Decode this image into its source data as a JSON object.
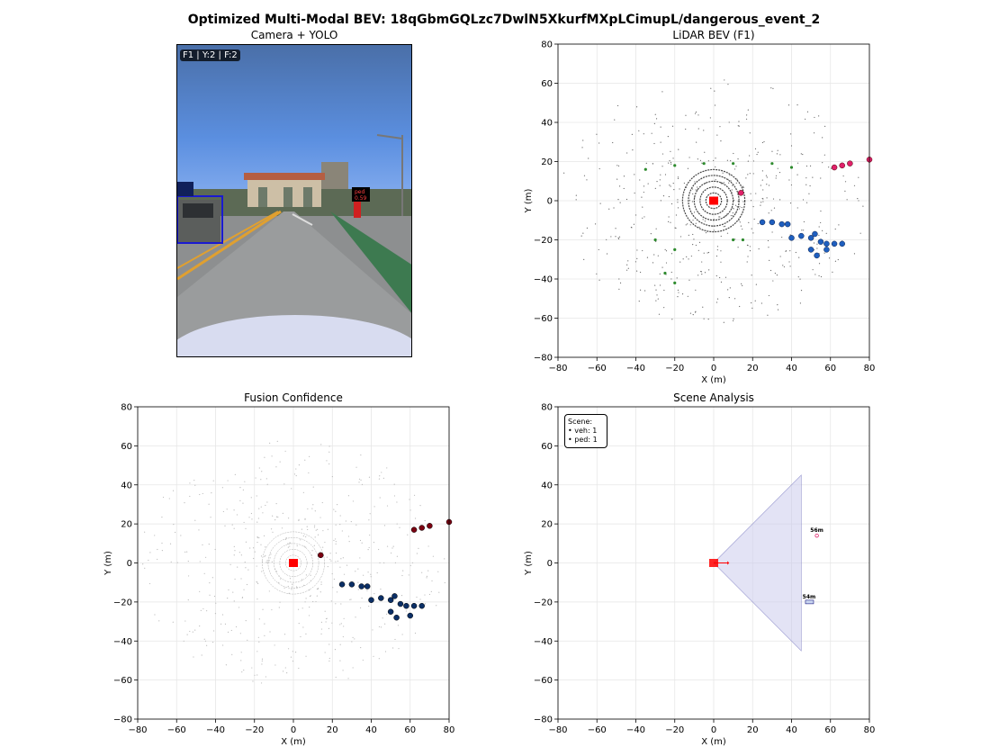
{
  "suptitle": "Optimized Multi-Modal BEV: 18qGbmGQLzc7DwlN5XkurfMXpLCimupL/dangerous_event_2",
  "panels": {
    "camera": {
      "title": "Camera + YOLO",
      "overlay": "F1 | Y:2 | F:2",
      "det_label_ped": "ped",
      "det_score_ped": "0.59"
    },
    "lidar": {
      "title": "LiDAR BEV (F1)",
      "xlabel": "X (m)",
      "ylabel": "Y (m)"
    },
    "fusion": {
      "title": "Fusion Confidence",
      "xlabel": "X (m)",
      "ylabel": "Y (m)"
    },
    "scene": {
      "title": "Scene Analysis",
      "xlabel": "X (m)",
      "ylabel": "Y (m)",
      "legend_header": "Scene:",
      "legend_lines": [
        "• veh: 1",
        "• ped: 1"
      ],
      "dist_ped": "56m",
      "dist_veh": "54m"
    }
  },
  "colors": {
    "ego": "#ff0000",
    "vehicle": "#1f5fbf",
    "pedestrian": "#e0206a",
    "vegetation": "#2e8b2e",
    "ground": "#555555",
    "fusion_veh": "#0b2f66",
    "fusion_ped": "#7a0011",
    "fov": "#c8c8ec"
  },
  "chart_data": [
    {
      "type": "scatter",
      "name": "lidar_bev",
      "xlabel": "X (m)",
      "ylabel": "Y (m)",
      "xlim": [
        -80,
        80
      ],
      "ylim": [
        -80,
        80
      ],
      "xticks": [
        -80,
        -60,
        -40,
        -20,
        0,
        20,
        40,
        60,
        80
      ],
      "yticks": [
        -80,
        -60,
        -40,
        -20,
        0,
        20,
        40,
        60,
        80
      ],
      "grid": true,
      "ego": [
        0,
        0
      ],
      "clusters": [
        {
          "class": "vehicle",
          "points": [
            [
              25,
              -11
            ],
            [
              30,
              -11
            ],
            [
              35,
              -12
            ],
            [
              38,
              -12
            ],
            [
              40,
              -19
            ],
            [
              45,
              -18
            ],
            [
              50,
              -19
            ],
            [
              52,
              -17
            ],
            [
              55,
              -21
            ],
            [
              58,
              -22
            ],
            [
              62,
              -22
            ],
            [
              66,
              -22
            ],
            [
              50,
              -25
            ],
            [
              53,
              -28
            ],
            [
              58,
              -25
            ]
          ]
        },
        {
          "class": "pedestrian",
          "points": [
            [
              62,
              17
            ],
            [
              66,
              18
            ],
            [
              70,
              19
            ],
            [
              80,
              21
            ],
            [
              14,
              4
            ]
          ]
        },
        {
          "class": "vegetation",
          "points": [
            [
              -35,
              16
            ],
            [
              -20,
              18
            ],
            [
              -5,
              19
            ],
            [
              10,
              19
            ],
            [
              30,
              19
            ],
            [
              40,
              17
            ],
            [
              -30,
              -20
            ],
            [
              -20,
              -25
            ],
            [
              10,
              -20
            ],
            [
              15,
              -20
            ],
            [
              -25,
              -37
            ],
            [
              -20,
              -42
            ]
          ]
        }
      ]
    },
    {
      "type": "scatter",
      "name": "fusion_confidence",
      "xlabel": "X (m)",
      "ylabel": "Y (m)",
      "xlim": [
        -80,
        80
      ],
      "ylim": [
        -80,
        80
      ],
      "xticks": [
        -80,
        -60,
        -40,
        -20,
        0,
        20,
        40,
        60,
        80
      ],
      "yticks": [
        -80,
        -60,
        -40,
        -20,
        0,
        20,
        40,
        60,
        80
      ],
      "grid": true,
      "ego": [
        0,
        0
      ],
      "clusters": [
        {
          "class": "vehicle",
          "points": [
            [
              25,
              -11
            ],
            [
              30,
              -11
            ],
            [
              35,
              -12
            ],
            [
              38,
              -12
            ],
            [
              40,
              -19
            ],
            [
              45,
              -18
            ],
            [
              50,
              -19
            ],
            [
              52,
              -17
            ],
            [
              55,
              -21
            ],
            [
              58,
              -22
            ],
            [
              62,
              -22
            ],
            [
              66,
              -22
            ],
            [
              50,
              -25
            ],
            [
              53,
              -28
            ],
            [
              60,
              -27
            ]
          ]
        },
        {
          "class": "pedestrian",
          "points": [
            [
              62,
              17
            ],
            [
              66,
              18
            ],
            [
              70,
              19
            ],
            [
              80,
              21
            ],
            [
              14,
              4
            ]
          ]
        }
      ]
    },
    {
      "type": "scatter",
      "name": "scene_analysis",
      "xlabel": "X (m)",
      "ylabel": "Y (m)",
      "xlim": [
        -80,
        80
      ],
      "ylim": [
        -80,
        80
      ],
      "xticks": [
        -80,
        -60,
        -40,
        -20,
        0,
        20,
        40,
        60,
        80
      ],
      "yticks": [
        -80,
        -60,
        -40,
        -20,
        0,
        20,
        40,
        60,
        80
      ],
      "grid": true,
      "ego": [
        0,
        0
      ],
      "fov": [
        [
          0,
          0
        ],
        [
          45,
          45
        ],
        [
          45,
          -45
        ]
      ],
      "objects": [
        {
          "class": "pedestrian",
          "x": 53,
          "y": 14,
          "label": "56m"
        },
        {
          "class": "vehicle",
          "x": 49,
          "y": -20,
          "label": "54m"
        }
      ]
    }
  ]
}
